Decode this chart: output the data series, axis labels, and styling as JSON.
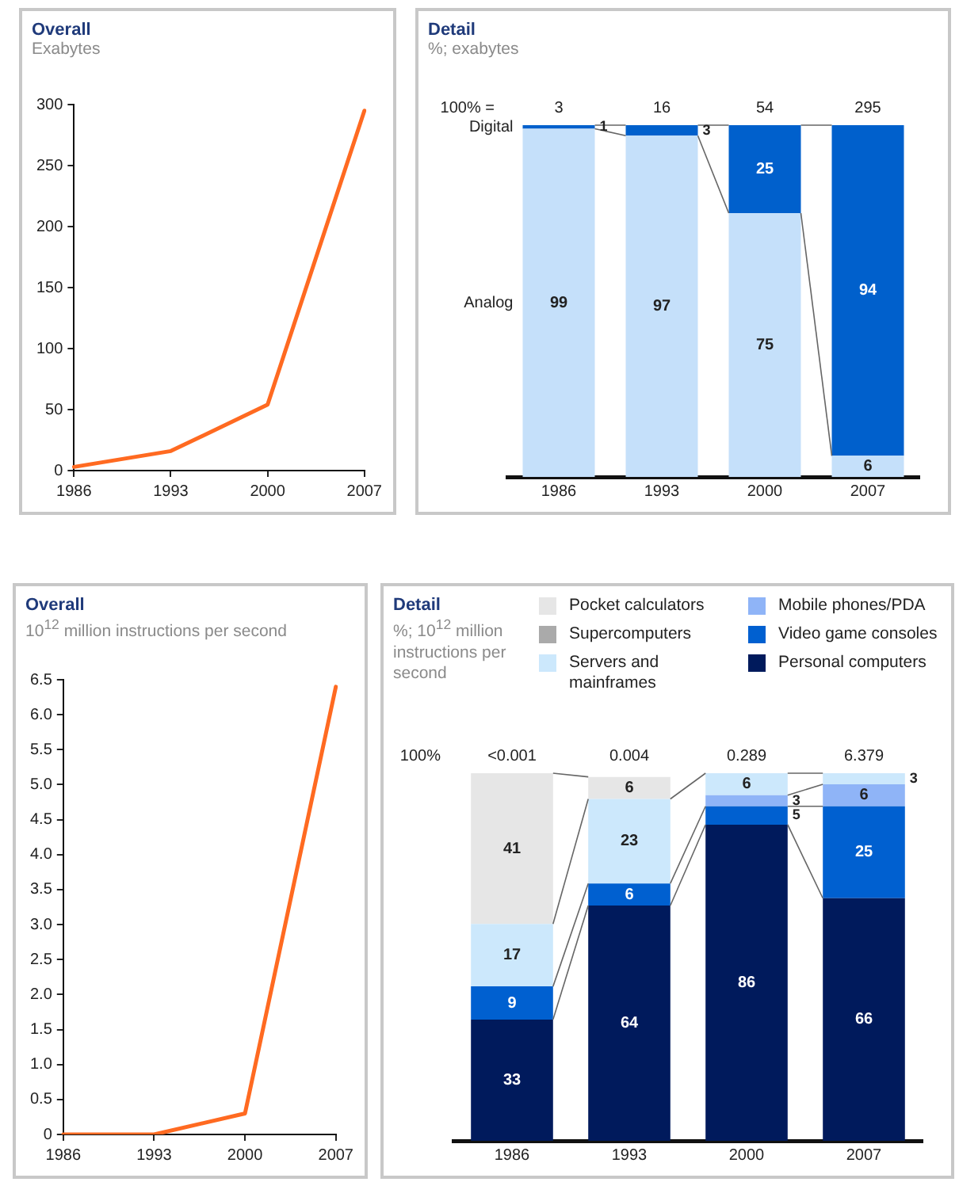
{
  "chart_data": [
    {
      "type": "line",
      "title": "Overall",
      "subtitle": "Exabytes",
      "categories": [
        "1986",
        "1993",
        "2000",
        "2007"
      ],
      "series": [
        {
          "color": "#ff6a21",
          "values": [
            3,
            16,
            54,
            295
          ]
        }
      ],
      "ylim": [
        0,
        300
      ],
      "yticks": [
        0,
        50,
        100,
        150,
        200,
        250,
        300
      ],
      "grid": false,
      "legend": false
    },
    {
      "type": "bar",
      "stacked": true,
      "title": "Detail",
      "subtitle": "%; exabytes",
      "categories": [
        "1986",
        "1993",
        "2000",
        "2007"
      ],
      "series": [
        {
          "name": "Analog",
          "color": "#c5e0fa",
          "values": [
            99,
            97,
            75,
            6
          ]
        },
        {
          "name": "Digital",
          "color": "#0060cc",
          "values": [
            1,
            3,
            25,
            94
          ]
        }
      ],
      "ylim": [
        0,
        100
      ],
      "tick_labels": "x",
      "data_labels": true,
      "annotations": [
        "100% =",
        "3",
        "16",
        "54",
        "295"
      ],
      "grid": false,
      "legend": "left"
    },
    {
      "type": "line",
      "title": "Overall",
      "subtitle": "10$^{12}$ million instructions per second",
      "categories": [
        "1986",
        "1993",
        "2000",
        "2007"
      ],
      "series": [
        {
          "color": "#ff6a21",
          "values": [
            0,
            0,
            0.3,
            6.4
          ]
        }
      ],
      "ylim": [
        0,
        6.5
      ],
      "yticks": [
        0,
        0.5,
        {
          "value": 1,
          "label": "1.0"
        },
        1.5,
        {
          "value": 2,
          "label": "2.0"
        },
        2.5,
        {
          "value": 3,
          "label": "3.0"
        },
        3.5,
        {
          "value": 4,
          "label": "4.0"
        },
        4.5,
        {
          "value": 5,
          "label": "5.0"
        },
        5.5,
        {
          "value": 6,
          "label": "6.0"
        },
        6.5
      ],
      "grid": false,
      "legend": false
    },
    {
      "type": "bar",
      "stacked": true,
      "title": "Detail",
      "subtitle": "%; 10$^{12}$ million instructions per second",
      "categories": [
        "1986",
        "1993",
        "2000",
        "2007"
      ],
      "series": [
        {
          "name": "Personal computers",
          "color": "#001a5c",
          "values": [
            33,
            64,
            86,
            66
          ]
        },
        {
          "name": "Video game consoles",
          "color": "#0060d0",
          "values": [
            9,
            6,
            5,
            25
          ]
        },
        {
          "name": "Mobile phones/PDA",
          "color": "#8fb4f7",
          "values": [
            null,
            null,
            3,
            6
          ]
        },
        {
          "name": "Servers and mainframes",
          "color": "#cce8fc",
          "values": [
            17,
            23,
            6,
            3
          ]
        },
        {
          "name": "Supercomputers",
          "color": "#aaaaaa",
          "values": [
            null,
            null,
            null,
            null
          ]
        },
        {
          "name": "Pocket calculators",
          "color": "#e6e6e6",
          "values": [
            41,
            6,
            null,
            null
          ]
        }
      ],
      "ylim": [
        0,
        100
      ],
      "tick_labels": "x",
      "data_labels": true,
      "annotations": [
        "100%",
        "<0.001",
        "0.004",
        "0.289",
        "6.379"
      ],
      "grid": false,
      "legend": "top right"
    }
  ]
}
